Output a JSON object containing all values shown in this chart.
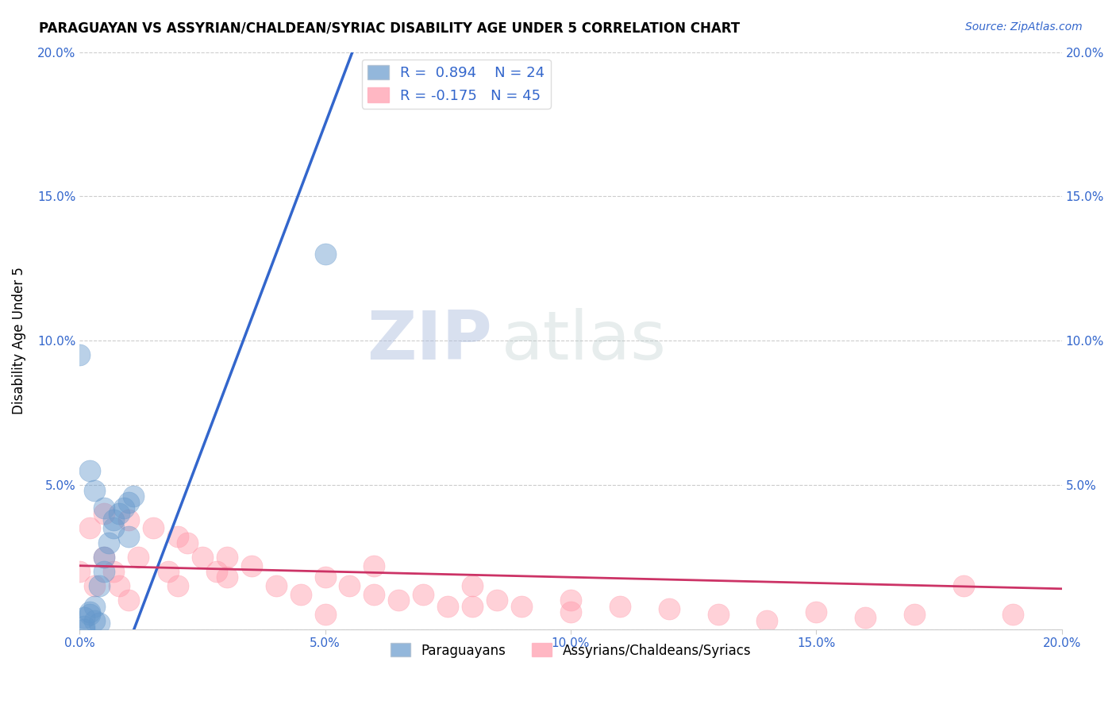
{
  "title": "PARAGUAYAN VS ASSYRIAN/CHALDEAN/SYRIAC DISABILITY AGE UNDER 5 CORRELATION CHART",
  "source": "Source: ZipAtlas.com",
  "ylabel": "Disability Age Under 5",
  "xlim": [
    0.0,
    0.2
  ],
  "ylim": [
    0.0,
    0.2
  ],
  "xticks": [
    0.0,
    0.05,
    0.1,
    0.15,
    0.2
  ],
  "yticks": [
    0.0,
    0.05,
    0.1,
    0.15,
    0.2
  ],
  "xticklabels": [
    "0.0%",
    "5.0%",
    "10.0%",
    "15.0%",
    "20.0%"
  ],
  "yticklabels": [
    "",
    "5.0%",
    "10.0%",
    "15.0%",
    "20.0%"
  ],
  "blue_color": "#6699CC",
  "pink_color": "#FF99AA",
  "blue_line_color": "#3366CC",
  "pink_line_color": "#CC3366",
  "legend_r_blue": "R =  0.894",
  "legend_n_blue": "N = 24",
  "legend_r_pink": "R = -0.175",
  "legend_n_pink": "N = 45",
  "watermark_zip": "ZIP",
  "watermark_atlas": "atlas",
  "blue_slope": 4.5,
  "blue_intercept": -0.05,
  "pink_slope": -0.04,
  "pink_intercept": 0.022,
  "par_x": [
    0.0,
    0.001,
    0.001,
    0.002,
    0.002,
    0.003,
    0.003,
    0.004,
    0.004,
    0.005,
    0.005,
    0.006,
    0.007,
    0.008,
    0.009,
    0.01,
    0.011,
    0.002,
    0.003,
    0.005,
    0.007,
    0.01,
    0.001,
    0.05
  ],
  "par_y": [
    0.095,
    0.0,
    0.001,
    0.005,
    0.006,
    0.003,
    0.008,
    0.002,
    0.015,
    0.02,
    0.025,
    0.03,
    0.035,
    0.04,
    0.042,
    0.044,
    0.046,
    0.055,
    0.048,
    0.042,
    0.038,
    0.032,
    0.004,
    0.13
  ],
  "ass_x": [
    0.0,
    0.002,
    0.003,
    0.005,
    0.007,
    0.008,
    0.01,
    0.012,
    0.015,
    0.018,
    0.02,
    0.022,
    0.025,
    0.028,
    0.03,
    0.035,
    0.04,
    0.045,
    0.05,
    0.055,
    0.06,
    0.065,
    0.07,
    0.075,
    0.08,
    0.085,
    0.09,
    0.1,
    0.11,
    0.12,
    0.13,
    0.15,
    0.17,
    0.19,
    0.005,
    0.01,
    0.02,
    0.03,
    0.05,
    0.06,
    0.08,
    0.1,
    0.14,
    0.16,
    0.18
  ],
  "ass_y": [
    0.02,
    0.035,
    0.015,
    0.025,
    0.02,
    0.015,
    0.01,
    0.025,
    0.035,
    0.02,
    0.015,
    0.03,
    0.025,
    0.02,
    0.018,
    0.022,
    0.015,
    0.012,
    0.018,
    0.015,
    0.022,
    0.01,
    0.012,
    0.008,
    0.015,
    0.01,
    0.008,
    0.01,
    0.008,
    0.007,
    0.005,
    0.006,
    0.005,
    0.005,
    0.04,
    0.038,
    0.032,
    0.025,
    0.005,
    0.012,
    0.008,
    0.006,
    0.003,
    0.004,
    0.015
  ]
}
